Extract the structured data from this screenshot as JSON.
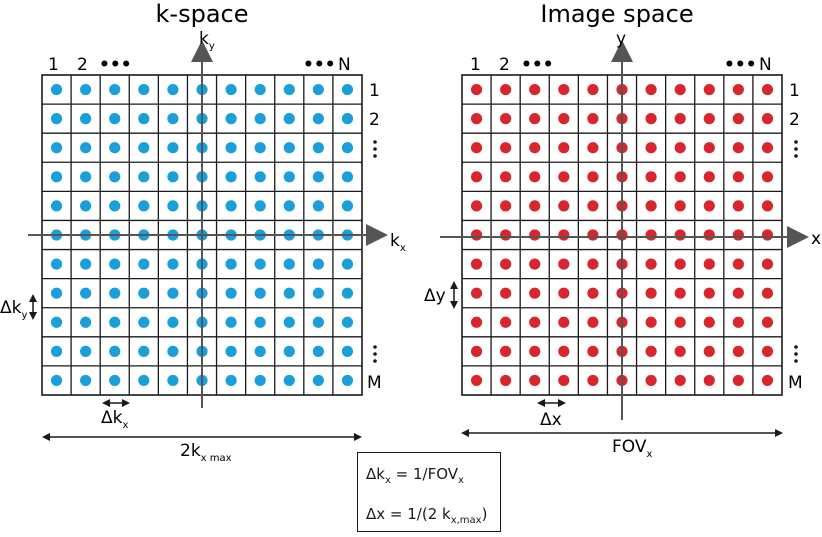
{
  "kspace": {
    "title": "k-space",
    "axis_x": "k",
    "axis_x_sub": "x",
    "axis_y": "k",
    "axis_y_sub": "y",
    "col_first": "1",
    "col_second": "2",
    "col_last": "N",
    "row_first": "1",
    "row_second": "2",
    "row_last": "M",
    "ellipsis": "•••",
    "delta_h": "Δk",
    "delta_h_sub": "x",
    "delta_v": "Δk",
    "delta_v_sub": "y",
    "extent": "2k",
    "extent_sub": "x max",
    "dot_color": "#1a9fd8"
  },
  "imagespace": {
    "title": "Image space",
    "axis_x": "x",
    "axis_y": "y",
    "col_first": "1",
    "col_second": "2",
    "col_last": "N",
    "row_first": "1",
    "row_second": "2",
    "row_last": "M",
    "ellipsis": "•••",
    "delta_h": "Δx",
    "delta_v": "Δy",
    "extent": "FOV",
    "extent_sub": "x",
    "dot_color": "#d8262e"
  },
  "grid": {
    "columns": 11,
    "rows": 11,
    "line_color": "#1a1a1a",
    "axis_color": "#555555"
  },
  "formulas": {
    "line1_main": "Δk",
    "line1_sub": "x",
    "line1_mid": " = 1/FOV",
    "line1_sub2": "x",
    "line2_main": "Δx = 1/(2 k",
    "line2_sub": "x,max",
    "line2_end": ")"
  }
}
